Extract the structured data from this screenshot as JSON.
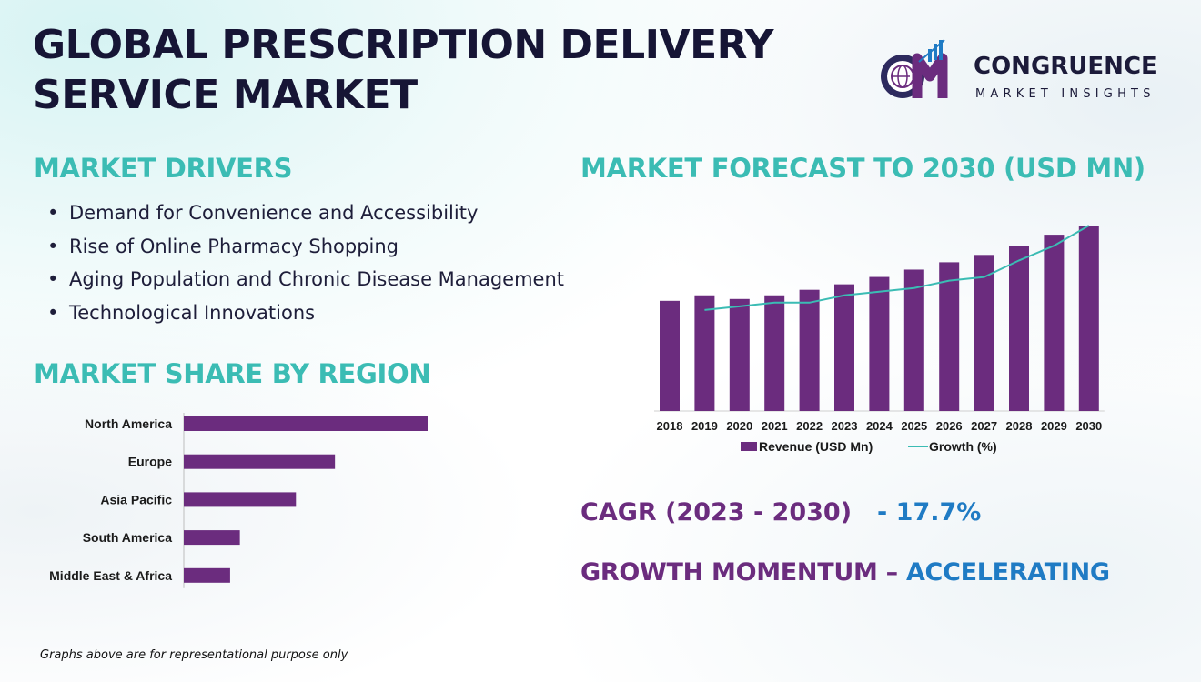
{
  "title": {
    "line1": "GLOBAL PRESCRIPTION DELIVERY",
    "line2": "SERVICE MARKET"
  },
  "logo": {
    "name": "CONGRUENCE",
    "tagline": "MARKET INSIGHTS",
    "icon": "cm-logo-icon"
  },
  "sections": {
    "drivers": "MARKET DRIVERS",
    "region": "MARKET SHARE BY REGION",
    "forecast": "MARKET FORECAST TO 2030 (USD MN)"
  },
  "drivers": [
    "Demand for Convenience and Accessibility",
    "Rise of Online Pharmacy Shopping",
    "Aging Population and Chronic Disease Management",
    "Technological Innovations"
  ],
  "cagr": {
    "label": "CAGR (2023 - 2030)",
    "value": "- 17.7%"
  },
  "momentum": {
    "label": "GROWTH MOMENTUM –",
    "value": "ACCELERATING"
  },
  "footnote": "Graphs above are for representational purpose only",
  "colors": {
    "teal": "#3bbcb4",
    "purple": "#6b2c7e",
    "blue": "#1f7bc4",
    "navy": "#161535",
    "line": "#3bbcb4"
  },
  "chart_data": [
    {
      "type": "bar",
      "orientation": "horizontal",
      "categories": [
        "North America",
        "Europe",
        "Asia Pacific",
        "South America",
        "Middle East & Africa"
      ],
      "values": [
        100,
        62,
        46,
        23,
        19
      ],
      "title": "",
      "xlabel": "",
      "ylabel": "",
      "xlim": [
        0,
        100
      ],
      "grid": false,
      "legend": "none"
    },
    {
      "type": "bar",
      "categories": [
        "2018",
        "2019",
        "2020",
        "2021",
        "2022",
        "2023",
        "2024",
        "2025",
        "2026",
        "2027",
        "2028",
        "2029",
        "2030"
      ],
      "series": [
        {
          "name": "Revenue (USD Mn)",
          "type": "bar",
          "values": [
            60,
            63,
            61,
            63,
            66,
            69,
            73,
            77,
            81,
            85,
            90,
            96,
            101
          ]
        },
        {
          "name": "Growth (%)",
          "type": "line",
          "values": [
            null,
            55,
            57,
            59,
            59,
            63,
            65,
            67,
            71,
            73,
            82,
            90,
            101
          ]
        }
      ],
      "title": "",
      "xlabel": "",
      "ylabel": "",
      "ylim": [
        0,
        101
      ],
      "grid": false,
      "legend": "bottom"
    }
  ]
}
